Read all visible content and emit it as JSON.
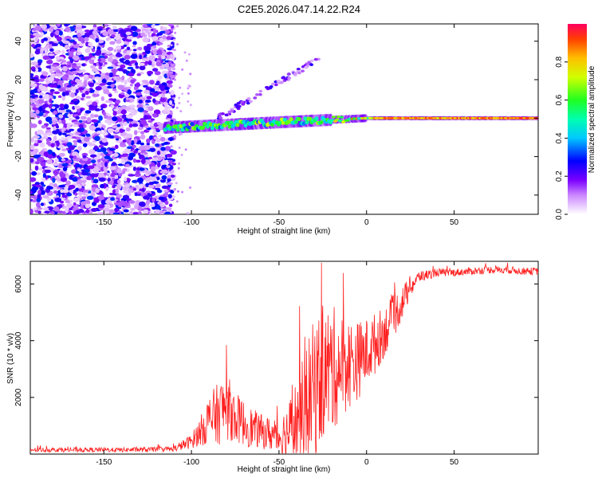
{
  "title": "C2E5.2026.047.14.22.R24",
  "chart_data": [
    {
      "type": "heatmap",
      "name": "spectrogram",
      "xlabel": "Height of straight line (km)",
      "ylabel": "Frequency (Hz)",
      "xlim": [
        -192,
        98
      ],
      "ylim": [
        -50,
        49
      ],
      "xticks": [
        -150,
        -100,
        -50,
        0,
        50
      ],
      "yticks": [
        -40,
        -20,
        0,
        20,
        40
      ],
      "colorbar": {
        "label": "Normalized spectral amplitude",
        "range": [
          0.0,
          1.0
        ],
        "ticks": [
          0.0,
          0.2,
          0.4,
          0.6,
          0.8
        ]
      },
      "features": [
        {
          "name": "broadband-noise",
          "x_range": [
            -192,
            -112
          ],
          "y_range": [
            -50,
            49
          ],
          "amplitude": 0.25
        },
        {
          "name": "carrier-line",
          "x_range": [
            -115,
            98
          ],
          "y_start": -5,
          "y_end": 0,
          "amplitude": 0.85
        },
        {
          "name": "secondary-branch",
          "from": [
            -85,
            0
          ],
          "to": [
            -25,
            32
          ],
          "amplitude": 0.2
        }
      ]
    },
    {
      "type": "line",
      "name": "snr",
      "xlabel": "Height of straight line (km)",
      "ylabel": "SNR (10 * v/v)",
      "xlim": [
        -192,
        98
      ],
      "ylim": [
        0,
        6800
      ],
      "xticks": [
        -150,
        -100,
        -50,
        0,
        50
      ],
      "yticks": [
        2000,
        4000,
        6000
      ],
      "series": [
        {
          "name": "SNR",
          "color": "#ff2020",
          "x": [
            -192,
            -180,
            -160,
            -140,
            -120,
            -110,
            -100,
            -95,
            -90,
            -85,
            -80,
            -75,
            -70,
            -65,
            -60,
            -55,
            -50,
            -45,
            -40,
            -35,
            -30,
            -25,
            -20,
            -15,
            -10,
            -5,
            0,
            5,
            10,
            15,
            20,
            25,
            30,
            40,
            50,
            60,
            70,
            80,
            90,
            98
          ],
          "values": [
            150,
            150,
            150,
            150,
            160,
            180,
            450,
            800,
            1200,
            1400,
            1700,
            1300,
            1100,
            900,
            800,
            700,
            600,
            800,
            1200,
            1600,
            2300,
            2800,
            3000,
            3100,
            3200,
            3300,
            3600,
            3900,
            4300,
            4800,
            5300,
            5900,
            6250,
            6400,
            6400,
            6450,
            6500,
            6500,
            6450,
            6450
          ],
          "noise": [
            80,
            80,
            80,
            80,
            90,
            100,
            250,
            500,
            900,
            1100,
            1200,
            900,
            800,
            700,
            600,
            600,
            700,
            1000,
            1500,
            2000,
            2500,
            2400,
            2300,
            1900,
            1600,
            1400,
            1200,
            1100,
            900,
            800,
            600,
            400,
            200,
            150,
            130,
            130,
            130,
            130,
            130,
            130
          ]
        }
      ]
    }
  ]
}
